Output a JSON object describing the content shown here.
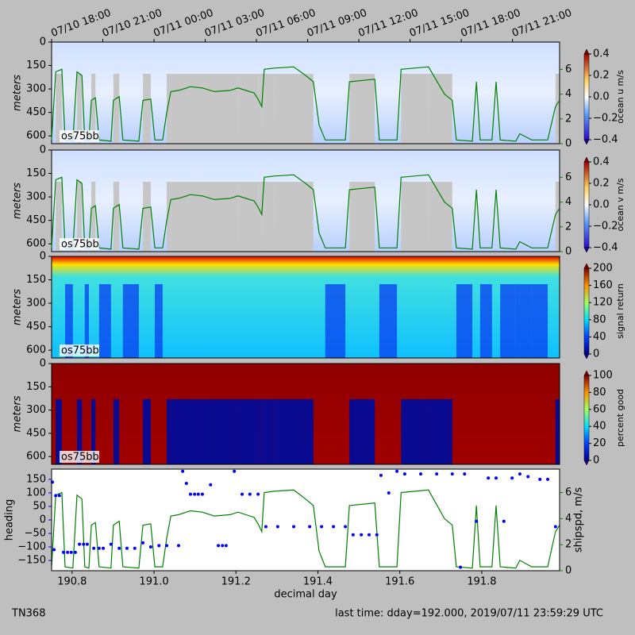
{
  "chart_data": [
    {
      "type": "heatmap",
      "cmap": "uv",
      "ylabel": "meters",
      "label": "os75bb",
      "ylim": [
        0,
        650
      ],
      "yticks": [
        0,
        150,
        300,
        450,
        600
      ],
      "y2lim": [
        0,
        8.2
      ],
      "y2ticks": [
        0,
        2,
        4,
        6
      ],
      "y2color": "#008000",
      "top_xticks": [
        {
          "value": 190.75,
          "label": "07/10 18:00"
        },
        {
          "value": 190.875,
          "label": "07/10 21:00"
        },
        {
          "value": 191.0,
          "label": "07/11 00:00"
        },
        {
          "value": 191.125,
          "label": "07/11 03:00"
        },
        {
          "value": 191.25,
          "label": "07/11 06:00"
        },
        {
          "value": 191.375,
          "label": "07/11 09:00"
        },
        {
          "value": 191.5,
          "label": "07/11 12:00"
        },
        {
          "value": 191.625,
          "label": "07/11 15:00"
        },
        {
          "value": 191.75,
          "label": "07/11 18:00"
        },
        {
          "value": 191.875,
          "label": "07/11 21:00"
        }
      ],
      "colorbar": {
        "label": "ocean u m/s",
        "lim": [
          -0.4,
          0.4
        ],
        "ticks": [
          {
            "value": -0.4,
            "label": "−0.4"
          },
          {
            "value": -0.2,
            "label": "−0.2"
          },
          {
            "value": 0,
            "label": "0.0"
          },
          0.2,
          0.4
        ]
      }
    },
    {
      "type": "heatmap",
      "cmap": "uv",
      "ylabel": "meters",
      "label": "os75bb",
      "ylim": [
        0,
        650
      ],
      "yticks": [
        0,
        150,
        300,
        450,
        600
      ],
      "y2lim": [
        0,
        8.2
      ],
      "y2ticks": [
        0,
        2,
        4,
        6
      ],
      "y2color": "#008000",
      "colorbar": {
        "label": "ocean v m/s",
        "lim": [
          -0.4,
          0.4
        ],
        "ticks": [
          {
            "value": -0.4,
            "label": "−0.4"
          },
          {
            "value": -0.2,
            "label": "−0.2"
          },
          {
            "value": 0,
            "label": "0.0"
          },
          0.2,
          0.4
        ]
      }
    },
    {
      "type": "heatmap",
      "cmap": "signal",
      "ylabel": "meters",
      "label": "os75bb",
      "ylim": [
        0,
        650
      ],
      "yticks": [
        0,
        150,
        300,
        450,
        600
      ],
      "colorbar": {
        "label": "signal return",
        "lim": [
          0,
          200
        ],
        "ticks": [
          0,
          40,
          80,
          120,
          160,
          200
        ]
      }
    },
    {
      "type": "heatmap",
      "cmap": "pg",
      "ylabel": "meters",
      "label": "os75bb",
      "ylim": [
        0,
        650
      ],
      "yticks": [
        0,
        150,
        300,
        450,
        600
      ],
      "colorbar": {
        "label": "percent good",
        "lim": [
          0,
          100
        ],
        "ticks": [
          0,
          20,
          40,
          60,
          80,
          100
        ]
      }
    },
    {
      "type": "scatter",
      "xlabel": "decimal day",
      "xlim": [
        190.75,
        191.99
      ],
      "xticks": [
        190.8,
        {
          "value": 191.0,
          "label": "191.0"
        },
        191.2,
        191.4,
        191.6,
        191.8
      ],
      "ylabel": "heading",
      "ylim": [
        -188,
        188
      ],
      "yticks": [
        150,
        100,
        50,
        0,
        {
          "value": -50,
          "label": "−50"
        },
        {
          "value": -100,
          "label": "−100"
        },
        {
          "value": -150,
          "label": "−150"
        }
      ],
      "y2label": "shipspd, m/s",
      "y2lim": [
        0,
        7.8
      ],
      "y2ticks": [
        0,
        2,
        4,
        6
      ],
      "series": [
        {
          "color": "#0000ff",
          "x": [
            190.752,
            190.756,
            190.76,
            190.769,
            190.779,
            190.789,
            190.798,
            190.808,
            190.818,
            190.828,
            190.837,
            190.853,
            190.866,
            190.876,
            190.895,
            190.915,
            190.934,
            190.953,
            190.973,
            190.992,
            191.012,
            191.031,
            191.06,
            191.07,
            191.079,
            191.089,
            191.099,
            191.108,
            191.118,
            191.138,
            191.157,
            191.167,
            191.176,
            191.196,
            191.215,
            191.234,
            191.254,
            191.273,
            191.302,
            191.341,
            191.38,
            191.409,
            191.438,
            191.467,
            191.486,
            191.506,
            191.525,
            191.544,
            191.554,
            191.573,
            191.593,
            191.612,
            191.651,
            191.69,
            191.728,
            191.748,
            191.758,
            191.787,
            191.816,
            191.835,
            191.854,
            191.874,
            191.893,
            191.913,
            191.942,
            191.961,
            191.98
          ],
          "values": [
            140,
            -110,
            90,
            90,
            -120,
            -120,
            -120,
            -120,
            -90,
            -90,
            -90,
            -105,
            -105,
            -105,
            -90,
            -105,
            -105,
            -105,
            -85,
            -100,
            -95,
            -95,
            -95,
            180,
            135,
            95,
            95,
            95,
            95,
            130,
            -95,
            -95,
            -95,
            180,
            95,
            95,
            95,
            -25,
            -25,
            -25,
            -25,
            -25,
            -25,
            -25,
            -55,
            -55,
            -55,
            -55,
            165,
            100,
            180,
            170,
            170,
            170,
            170,
            -175,
            170,
            -5,
            155,
            155,
            -5,
            155,
            170,
            160,
            150,
            150,
            -25
          ]
        },
        {
          "color": "#008000",
          "axis": "y2",
          "type": "line",
          "x": [
            190.75,
            190.76,
            190.775,
            190.783,
            190.802,
            190.812,
            190.824,
            190.831,
            190.841,
            190.847,
            190.857,
            190.866,
            190.895,
            190.901,
            190.915,
            190.924,
            190.963,
            190.973,
            190.992,
            191.002,
            191.021,
            191.031,
            191.041,
            191.06,
            191.089,
            191.118,
            191.147,
            191.186,
            191.205,
            191.244,
            191.254,
            191.263,
            191.269,
            191.293,
            191.341,
            191.37,
            191.389,
            191.403,
            191.418,
            191.467,
            191.477,
            191.539,
            191.55,
            191.593,
            191.603,
            191.67,
            191.709,
            191.728,
            191.738,
            191.777,
            191.787,
            191.796,
            191.825,
            191.835,
            191.845,
            191.883,
            191.893,
            191.922,
            191.961,
            191.98,
            191.99
          ],
          "values": [
            0.3,
            5.8,
            6.0,
            0.3,
            0.2,
            5.8,
            5.5,
            0.3,
            0.2,
            3.5,
            3.7,
            0.3,
            0.2,
            3.5,
            3.8,
            0.3,
            0.2,
            3.5,
            3.6,
            0.3,
            0.3,
            2.5,
            4.2,
            4.3,
            4.6,
            4.5,
            4.2,
            4.3,
            4.5,
            4.1,
            3.6,
            3.0,
            6.0,
            6.1,
            6.2,
            5.5,
            5.0,
            1.5,
            0.3,
            0.3,
            5.0,
            5.2,
            0.3,
            0.3,
            6.0,
            6.2,
            4.0,
            3.5,
            0.3,
            0.2,
            5.0,
            0.3,
            0.3,
            5.0,
            0.3,
            0.2,
            0.8,
            0.3,
            0.3,
            3.0,
            3.5
          ]
        }
      ]
    }
  ],
  "footer": {
    "left": "TN368",
    "right": "last time: dday=192.000,  2019/07/11 23:59:29 UTC"
  }
}
